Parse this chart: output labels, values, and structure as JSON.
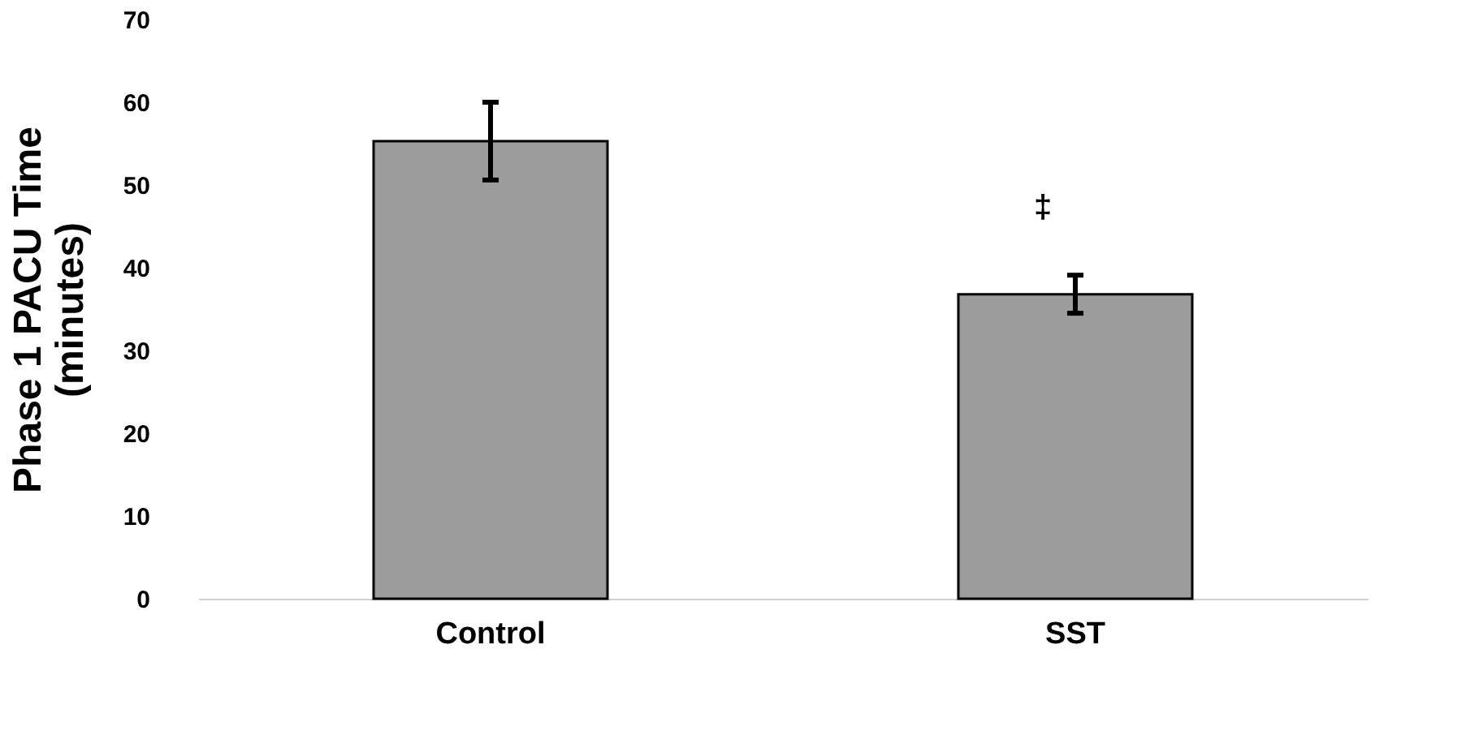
{
  "chart_data": {
    "type": "bar",
    "ylabel": "Phase 1 PACU Time\n(minutes)",
    "categories": [
      "Control",
      "SST"
    ],
    "values": [
      55.3,
      36.8
    ],
    "errors": [
      4.7,
      2.3
    ],
    "color": "#9c9c9c",
    "ylim": [
      0,
      70
    ],
    "yticks": [
      0,
      10,
      20,
      30,
      40,
      50,
      60,
      70
    ],
    "grid": false,
    "annotations": [
      "‡"
    ]
  }
}
